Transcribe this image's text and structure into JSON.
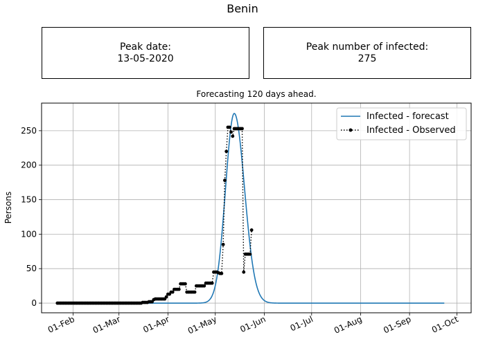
{
  "page": {
    "title": "Benin",
    "peak_date_label": "Peak date:",
    "peak_date_value": "13-05-2020",
    "peak_infected_label": "Peak number of infected:",
    "peak_infected_value": "275"
  },
  "chart_data": {
    "type": "line",
    "title": "Forecasting 120 days ahead.",
    "xlabel": "",
    "ylabel": "Persons",
    "x_ticks": [
      "01-Feb",
      "01-Mar",
      "01-Apr",
      "01-May",
      "01-Jun",
      "01-Jul",
      "01-Aug",
      "01-Sep",
      "01-Oct"
    ],
    "x_tick_dates": [
      "2020-02-01",
      "2020-03-01",
      "2020-04-01",
      "2020-05-01",
      "2020-06-01",
      "2020-07-01",
      "2020-08-01",
      "2020-09-01",
      "2020-10-01"
    ],
    "y_ticks": [
      0,
      50,
      100,
      150,
      200,
      250
    ],
    "xlim": [
      "2020-01-12",
      "2020-10-10"
    ],
    "ylim": [
      -14,
      290
    ],
    "grid": true,
    "legend_position": "top-right",
    "series": [
      {
        "name": "Infected - forecast",
        "style": "solid line",
        "color": "#1f77b4",
        "x_start": "2020-01-22",
        "x_end": "2020-09-23",
        "peak_date": "2020-05-13",
        "peak_value": 275,
        "spread_days_before": 5.5,
        "spread_days_after": 6.5
      },
      {
        "name": "Infected - Observed",
        "style": "dotted line with circle markers",
        "color": "#000000",
        "points": [
          [
            "2020-01-22",
            0
          ],
          [
            "2020-01-23",
            0
          ],
          [
            "2020-01-24",
            0
          ],
          [
            "2020-01-25",
            0
          ],
          [
            "2020-01-26",
            0
          ],
          [
            "2020-01-27",
            0
          ],
          [
            "2020-01-28",
            0
          ],
          [
            "2020-01-29",
            0
          ],
          [
            "2020-01-30",
            0
          ],
          [
            "2020-01-31",
            0
          ],
          [
            "2020-02-01",
            0
          ],
          [
            "2020-02-02",
            0
          ],
          [
            "2020-02-03",
            0
          ],
          [
            "2020-02-04",
            0
          ],
          [
            "2020-02-05",
            0
          ],
          [
            "2020-02-06",
            0
          ],
          [
            "2020-02-07",
            0
          ],
          [
            "2020-02-08",
            0
          ],
          [
            "2020-02-09",
            0
          ],
          [
            "2020-02-10",
            0
          ],
          [
            "2020-02-11",
            0
          ],
          [
            "2020-02-12",
            0
          ],
          [
            "2020-02-13",
            0
          ],
          [
            "2020-02-14",
            0
          ],
          [
            "2020-02-15",
            0
          ],
          [
            "2020-02-16",
            0
          ],
          [
            "2020-02-17",
            0
          ],
          [
            "2020-02-18",
            0
          ],
          [
            "2020-02-19",
            0
          ],
          [
            "2020-02-20",
            0
          ],
          [
            "2020-02-21",
            0
          ],
          [
            "2020-02-22",
            0
          ],
          [
            "2020-02-23",
            0
          ],
          [
            "2020-02-24",
            0
          ],
          [
            "2020-02-25",
            0
          ],
          [
            "2020-02-26",
            0
          ],
          [
            "2020-02-27",
            0
          ],
          [
            "2020-02-28",
            0
          ],
          [
            "2020-02-29",
            0
          ],
          [
            "2020-03-01",
            0
          ],
          [
            "2020-03-02",
            0
          ],
          [
            "2020-03-03",
            0
          ],
          [
            "2020-03-04",
            0
          ],
          [
            "2020-03-05",
            0
          ],
          [
            "2020-03-06",
            0
          ],
          [
            "2020-03-07",
            0
          ],
          [
            "2020-03-08",
            0
          ],
          [
            "2020-03-09",
            0
          ],
          [
            "2020-03-10",
            0
          ],
          [
            "2020-03-11",
            0
          ],
          [
            "2020-03-12",
            0
          ],
          [
            "2020-03-13",
            0
          ],
          [
            "2020-03-14",
            0
          ],
          [
            "2020-03-15",
            0
          ],
          [
            "2020-03-16",
            1
          ],
          [
            "2020-03-17",
            1
          ],
          [
            "2020-03-18",
            1
          ],
          [
            "2020-03-19",
            1
          ],
          [
            "2020-03-20",
            2
          ],
          [
            "2020-03-21",
            2
          ],
          [
            "2020-03-22",
            2
          ],
          [
            "2020-03-23",
            5
          ],
          [
            "2020-03-24",
            6
          ],
          [
            "2020-03-25",
            6
          ],
          [
            "2020-03-26",
            6
          ],
          [
            "2020-03-27",
            6
          ],
          [
            "2020-03-28",
            6
          ],
          [
            "2020-03-29",
            6
          ],
          [
            "2020-03-30",
            6
          ],
          [
            "2020-03-31",
            9
          ],
          [
            "2020-04-01",
            13
          ],
          [
            "2020-04-02",
            13
          ],
          [
            "2020-04-03",
            16
          ],
          [
            "2020-04-04",
            16
          ],
          [
            "2020-04-05",
            20
          ],
          [
            "2020-04-06",
            20
          ],
          [
            "2020-04-07",
            20
          ],
          [
            "2020-04-08",
            20
          ],
          [
            "2020-04-09",
            28
          ],
          [
            "2020-04-10",
            28
          ],
          [
            "2020-04-11",
            28
          ],
          [
            "2020-04-12",
            28
          ],
          [
            "2020-04-13",
            16
          ],
          [
            "2020-04-14",
            16
          ],
          [
            "2020-04-15",
            16
          ],
          [
            "2020-04-16",
            16
          ],
          [
            "2020-04-17",
            16
          ],
          [
            "2020-04-18",
            16
          ],
          [
            "2020-04-19",
            25
          ],
          [
            "2020-04-20",
            25
          ],
          [
            "2020-04-21",
            25
          ],
          [
            "2020-04-22",
            25
          ],
          [
            "2020-04-23",
            25
          ],
          [
            "2020-04-24",
            25
          ],
          [
            "2020-04-25",
            29
          ],
          [
            "2020-04-26",
            29
          ],
          [
            "2020-04-27",
            29
          ],
          [
            "2020-04-28",
            29
          ],
          [
            "2020-04-29",
            29
          ],
          [
            "2020-04-30",
            45
          ],
          [
            "2020-05-01",
            45
          ],
          [
            "2020-05-02",
            45
          ],
          [
            "2020-05-03",
            44
          ],
          [
            "2020-05-04",
            43
          ],
          [
            "2020-05-05",
            43
          ],
          [
            "2020-05-06",
            85
          ],
          [
            "2020-05-07",
            178
          ],
          [
            "2020-05-08",
            220
          ],
          [
            "2020-05-09",
            255
          ],
          [
            "2020-05-10",
            255
          ],
          [
            "2020-05-11",
            248
          ],
          [
            "2020-05-12",
            242
          ],
          [
            "2020-05-13",
            253
          ],
          [
            "2020-05-14",
            253
          ],
          [
            "2020-05-15",
            253
          ],
          [
            "2020-05-16",
            253
          ],
          [
            "2020-05-17",
            253
          ],
          [
            "2020-05-18",
            253
          ],
          [
            "2020-05-19",
            45
          ],
          [
            "2020-05-20",
            71
          ],
          [
            "2020-05-21",
            71
          ],
          [
            "2020-05-22",
            71
          ],
          [
            "2020-05-23",
            71
          ],
          [
            "2020-05-24",
            106
          ]
        ]
      }
    ]
  }
}
